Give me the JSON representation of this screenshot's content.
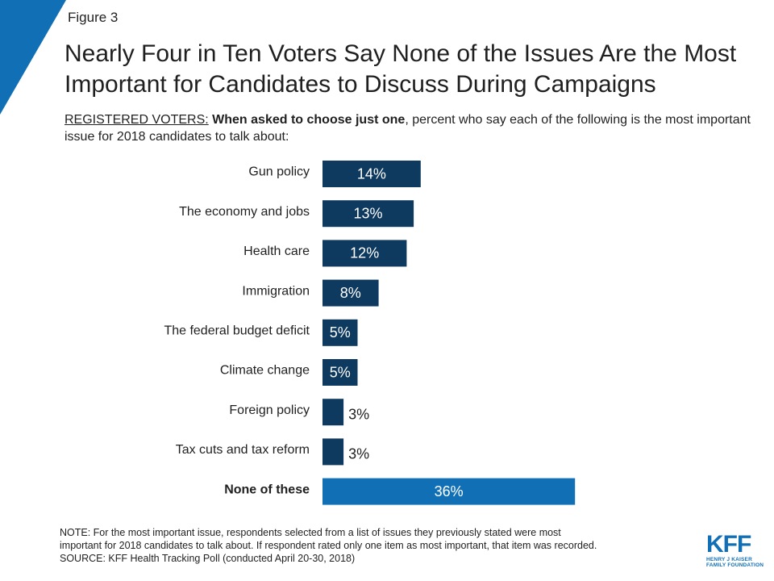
{
  "figure_label": "Figure 3",
  "title": "Nearly Four in Ten Voters Say None of the Issues Are the Most Important for Candidates to Discuss During Campaigns",
  "subtitle": {
    "prefix": "REGISTERED VOTERS:",
    "bold": "When asked to choose just one",
    "rest": ", percent who say each of the following is the most important issue for 2018 candidates to talk about:"
  },
  "chart_data": {
    "type": "bar",
    "orientation": "horizontal",
    "categories": [
      "Gun policy",
      "The economy and jobs",
      "Health care",
      "Immigration",
      "The federal budget deficit",
      "Climate change",
      "Foreign policy",
      "Tax cuts and tax reform",
      "None of these"
    ],
    "values": [
      14,
      13,
      12,
      8,
      5,
      5,
      3,
      3,
      36
    ],
    "value_labels": [
      "14%",
      "13%",
      "12%",
      "8%",
      "5%",
      "5%",
      "3%",
      "3%",
      "36%"
    ],
    "highlight_index": 8,
    "colors": {
      "primary": "#0f3a5f",
      "highlight": "#1170b5"
    },
    "grid": false
  },
  "note": [
    "NOTE: For the most important issue, respondents selected from a list of issues they previously stated were most",
    "important for 2018 candidates to talk about. If respondent rated only one item as most important, that item was recorded.",
    "SOURCE: KFF Health Tracking Poll (conducted April 20-30, 2018)"
  ],
  "logo": {
    "mark": "KFF",
    "line1": "HENRY J KAISER",
    "line2": "FAMILY FOUNDATION"
  }
}
